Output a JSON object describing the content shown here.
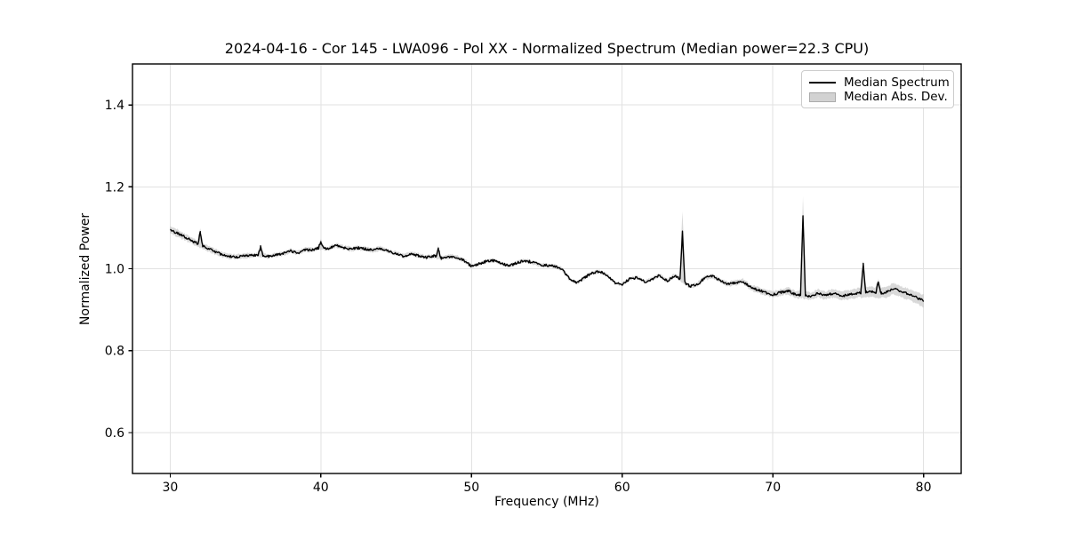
{
  "title": "2024-04-16 - Cor 145 - LWA096 - Pol XX - Normalized Spectrum (Median power=22.3 CPU)",
  "chart_data": {
    "type": "line",
    "title": "2024-04-16 - Cor 145 - LWA096 - Pol XX - Normalized Spectrum (Median power=22.3 CPU)",
    "xlabel": "Frequency (MHz)",
    "ylabel": "Normalized Power",
    "xlim": [
      27.5,
      82.5
    ],
    "ylim": [
      0.5,
      1.5
    ],
    "xticks": [
      30,
      40,
      50,
      60,
      70,
      80
    ],
    "yticks": [
      0.6,
      0.8,
      1.0,
      1.2,
      1.4
    ],
    "grid": true,
    "legend": {
      "position": "upper-right",
      "entries": [
        {
          "label": "Median Spectrum",
          "type": "line",
          "color": "#000000"
        },
        {
          "label": "Median Abs. Dev.",
          "type": "patch",
          "color": "#d2d2d2"
        }
      ]
    },
    "colors": {
      "line": "#000000",
      "band": "#aaaaaa",
      "band_opacity": 0.45,
      "grid": "#e2e2e2",
      "spine": "#000000",
      "background": "#ffffff"
    },
    "series": [
      {
        "name": "Median Spectrum",
        "x_start": 30.0,
        "x_step": 0.5,
        "values": [
          1.095,
          1.087,
          1.077,
          1.067,
          1.058,
          1.05,
          1.041,
          1.034,
          1.03,
          1.029,
          1.031,
          1.033,
          1.034,
          1.03,
          1.034,
          1.037,
          1.043,
          1.039,
          1.047,
          1.046,
          1.052,
          1.049,
          1.057,
          1.052,
          1.048,
          1.051,
          1.048,
          1.045,
          1.05,
          1.042,
          1.037,
          1.03,
          1.037,
          1.032,
          1.027,
          1.031,
          1.026,
          1.03,
          1.028,
          1.02,
          1.006,
          1.012,
          1.018,
          1.02,
          1.012,
          1.007,
          1.014,
          1.02,
          1.016,
          1.01,
          1.008,
          1.006,
          1.0,
          0.975,
          0.965,
          0.978,
          0.99,
          0.993,
          0.985,
          0.965,
          0.962,
          0.975,
          0.979,
          0.968,
          0.975,
          0.984,
          0.97,
          0.984,
          0.97,
          0.957,
          0.962,
          0.978,
          0.982,
          0.972,
          0.962,
          0.966,
          0.97,
          0.955,
          0.948,
          0.942,
          0.937,
          0.942,
          0.946,
          0.937,
          0.937,
          0.932,
          0.94,
          0.935,
          0.94,
          0.934,
          0.936,
          0.94,
          0.942,
          0.944,
          0.94,
          0.942,
          0.952,
          0.944,
          0.938,
          0.93,
          0.921
        ]
      },
      {
        "name": "Median Abs. Dev.",
        "x_start": 30.0,
        "x_step": 0.5,
        "half_widths": [
          0.009,
          0.009,
          0.008,
          0.007,
          0.007,
          0.007,
          0.007,
          0.006,
          0.006,
          0.006,
          0.006,
          0.005,
          0.005,
          0.005,
          0.005,
          0.005,
          0.005,
          0.005,
          0.005,
          0.005,
          0.005,
          0.005,
          0.005,
          0.005,
          0.005,
          0.005,
          0.005,
          0.005,
          0.005,
          0.005,
          0.005,
          0.005,
          0.005,
          0.005,
          0.005,
          0.005,
          0.005,
          0.005,
          0.005,
          0.005,
          0.004,
          0.004,
          0.004,
          0.004,
          0.004,
          0.004,
          0.004,
          0.004,
          0.004,
          0.004,
          0.004,
          0.004,
          0.004,
          0.004,
          0.004,
          0.004,
          0.004,
          0.004,
          0.004,
          0.004,
          0.004,
          0.004,
          0.004,
          0.004,
          0.004,
          0.004,
          0.005,
          0.005,
          0.005,
          0.005,
          0.005,
          0.005,
          0.005,
          0.005,
          0.006,
          0.006,
          0.006,
          0.007,
          0.007,
          0.007,
          0.008,
          0.008,
          0.008,
          0.009,
          0.009,
          0.009,
          0.01,
          0.01,
          0.01,
          0.011,
          0.011,
          0.011,
          0.012,
          0.012,
          0.012,
          0.013,
          0.013,
          0.013,
          0.014,
          0.014,
          0.015
        ]
      }
    ],
    "spikes": [
      {
        "freq": 32.0,
        "peak": 1.09,
        "band_peak": 1.098
      },
      {
        "freq": 36.0,
        "peak": 1.053,
        "band_peak": 1.06
      },
      {
        "freq": 40.0,
        "peak": 1.066,
        "band_peak": 1.072
      },
      {
        "freq": 47.8,
        "peak": 1.048,
        "band_peak": 1.055
      },
      {
        "freq": 64.0,
        "peak": 1.089,
        "band_peak": 1.14
      },
      {
        "freq": 72.0,
        "peak": 1.129,
        "band_peak": 1.176
      },
      {
        "freq": 76.0,
        "peak": 1.012,
        "band_peak": 1.018
      },
      {
        "freq": 77.0,
        "peak": 0.968,
        "band_peak": 0.975
      }
    ],
    "noise_amplitude": 0.003
  }
}
